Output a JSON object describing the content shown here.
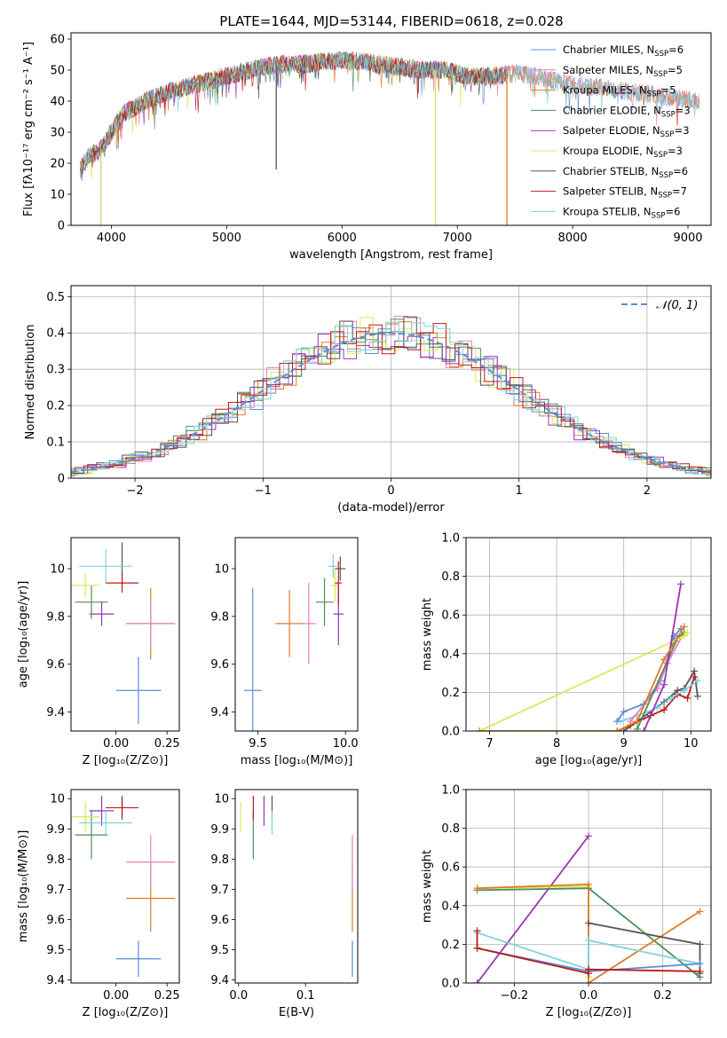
{
  "figure_title": "PLATE=1644, MJD=53144, FIBERID=0618, z=0.028",
  "legend_entries": [
    {
      "label": "Chabrier MILES, N",
      "sub": "SSP",
      "tail": "=6",
      "color": "#5b8bd8"
    },
    {
      "label": "Salpeter MILES, N",
      "sub": "SSP",
      "tail": "=5",
      "color": "#ea7fc4"
    },
    {
      "label": "Kroupa MILES, N",
      "sub": "SSP",
      "tail": "=5",
      "color": "#e07a28"
    },
    {
      "label": "Chabrier ELODIE, N",
      "sub": "SSP",
      "tail": "=3",
      "color": "#4f8c5a"
    },
    {
      "label": "Salpeter ELODIE, N",
      "sub": "SSP",
      "tail": "=3",
      "color": "#9a35b2"
    },
    {
      "label": "Kroupa ELODIE, N",
      "sub": "SSP",
      "tail": "=3",
      "color": "#d8ea55"
    },
    {
      "label": "Chabrier STELIB, N",
      "sub": "SSP",
      "tail": "=6",
      "color": "#555555"
    },
    {
      "label": "Salpeter STELIB, N",
      "sub": "SSP",
      "tail": "=7",
      "color": "#c01a1a"
    },
    {
      "label": "Kroupa STELIB, N",
      "sub": "SSP",
      "tail": "=6",
      "color": "#7fd2dc"
    }
  ],
  "chart_data": [
    {
      "id": "spectrum",
      "type": "line",
      "xlabel": "wavelength [Angstrom, rest frame]",
      "ylabel": "Flux [fλ10⁻¹⁷ erg cm⁻² s⁻¹ A⁻¹]",
      "xlim": [
        3650,
        9200
      ],
      "ylim": [
        0,
        62
      ],
      "xticks": [
        4000,
        5000,
        6000,
        7000,
        8000,
        9000
      ],
      "yticks": [
        0,
        10,
        20,
        30,
        40,
        50,
        60
      ],
      "continuum": [
        [
          3730,
          18
        ],
        [
          3800,
          22
        ],
        [
          3900,
          24
        ],
        [
          4000,
          30
        ],
        [
          4100,
          36
        ],
        [
          4300,
          40
        ],
        [
          4500,
          43
        ],
        [
          4700,
          45
        ],
        [
          4900,
          47
        ],
        [
          5100,
          49
        ],
        [
          5300,
          51
        ],
        [
          5500,
          52
        ],
        [
          5700,
          52
        ],
        [
          5900,
          53
        ],
        [
          6100,
          53
        ],
        [
          6300,
          52
        ],
        [
          6500,
          51
        ],
        [
          6700,
          50
        ],
        [
          6900,
          50
        ],
        [
          7100,
          48
        ],
        [
          7300,
          48
        ],
        [
          7500,
          49
        ],
        [
          7700,
          48
        ],
        [
          7900,
          46
        ],
        [
          8100,
          45
        ],
        [
          8300,
          44
        ],
        [
          8500,
          43
        ],
        [
          8700,
          42
        ],
        [
          8900,
          41
        ],
        [
          9100,
          40
        ]
      ],
      "drops": [
        [
          3910,
          0
        ],
        [
          5430,
          18
        ],
        [
          6810,
          0
        ],
        [
          7430,
          0
        ]
      ],
      "grid": false,
      "legend": "top-right"
    },
    {
      "id": "residual_histogram",
      "type": "line",
      "xlabel": "(data-model)/error",
      "ylabel": "Normed distribution",
      "xlim": [
        -2.5,
        2.5
      ],
      "ylim": [
        0,
        0.53
      ],
      "xticks": [
        -2,
        -1,
        0,
        1,
        2
      ],
      "yticks": [
        0,
        0.1,
        0.2,
        0.3,
        0.4,
        0.5
      ],
      "reference_curve": "N(0,1)",
      "legend_label": "𝒩(0, 1)",
      "bin_width": 0.1,
      "grid": true,
      "legend": "top-right"
    },
    {
      "id": "age_vs_Z",
      "type": "scatter",
      "xlabel": "Z [log₁₀(Z/Z⊙)]",
      "ylabel": "age  [log₁₀(age/yr)]",
      "xlim": [
        -0.22,
        0.31
      ],
      "ylim": [
        9.32,
        10.13
      ],
      "xticks": [
        0.0,
        0.25
      ],
      "xticklabels": [
        "0.00",
        "0.25"
      ],
      "yticks": [
        9.4,
        9.6,
        9.8,
        10.0
      ],
      "points": [
        {
          "color": "#5b8bd8",
          "x": 0.11,
          "xerr": 0.11,
          "y": 9.49,
          "yerr": 0.14
        },
        {
          "color": "#e07a28",
          "x": 0.17,
          "xerr": 0.12,
          "y": 9.77,
          "yerr": 0.15
        },
        {
          "color": "#ea7fc4",
          "x": 0.17,
          "xerr": 0.12,
          "y": 9.77,
          "yerr": 0.1
        },
        {
          "color": "#4f8c5a",
          "x": -0.12,
          "xerr": 0.08,
          "y": 9.86,
          "yerr": 0.07
        },
        {
          "color": "#9a35b2",
          "x": -0.07,
          "xerr": 0.06,
          "y": 9.81,
          "yerr": 0.05
        },
        {
          "color": "#d8ea55",
          "x": -0.15,
          "xerr": 0.07,
          "y": 9.93,
          "yerr": 0.05
        },
        {
          "color": "#555555",
          "x": 0.03,
          "xerr": 0.0,
          "y": 10.02,
          "yerr": 0.09
        },
        {
          "color": "#c01a1a",
          "x": 0.03,
          "xerr": 0.08,
          "y": 9.94,
          "yerr": 0.04
        },
        {
          "color": "#7fd2dc",
          "x": -0.05,
          "xerr": 0.13,
          "y": 10.01,
          "yerr": 0.07
        }
      ]
    },
    {
      "id": "age_vs_mass",
      "type": "scatter",
      "xlabel": "mass [log₁₀(M/M⊙)]",
      "ylabel": "",
      "xlim": [
        9.37,
        10.07
      ],
      "ylim": [
        9.32,
        10.13
      ],
      "xticks": [
        9.5,
        10.0
      ],
      "xticklabels": [
        "9.5",
        "10.0"
      ],
      "yticks": [
        9.4,
        9.6,
        9.8,
        10.0
      ],
      "points": [
        {
          "color": "#5b8bd8",
          "x": 9.47,
          "xerr": 0.05,
          "y": 9.49,
          "yerr": 0.43
        },
        {
          "color": "#e07a28",
          "x": 9.68,
          "xerr": 0.08,
          "y": 9.77,
          "yerr": 0.14
        },
        {
          "color": "#ea7fc4",
          "x": 9.79,
          "xerr": 0.04,
          "y": 9.77,
          "yerr": 0.17
        },
        {
          "color": "#4f8c5a",
          "x": 9.88,
          "xerr": 0.05,
          "y": 9.86,
          "yerr": 0.1
        },
        {
          "color": "#9a35b2",
          "x": 9.96,
          "xerr": 0.03,
          "y": 9.81,
          "yerr": 0.13
        },
        {
          "color": "#d8ea55",
          "x": 9.94,
          "xerr": 0.02,
          "y": 9.93,
          "yerr": 0.07
        },
        {
          "color": "#555555",
          "x": 9.97,
          "xerr": 0.03,
          "y": 10.0,
          "yerr": 0.05
        },
        {
          "color": "#c01a1a",
          "x": 9.96,
          "xerr": 0.02,
          "y": 9.94,
          "yerr": 0.09
        },
        {
          "color": "#7fd2dc",
          "x": 9.93,
          "xerr": 0.03,
          "y": 10.01,
          "yerr": 0.05
        }
      ]
    },
    {
      "id": "weight_vs_age",
      "type": "line",
      "xlabel": "age  [log₁₀(age/yr)]",
      "ylabel": "mass weight",
      "xlim": [
        6.65,
        10.3
      ],
      "ylim": [
        0,
        1.0
      ],
      "xticks": [
        7,
        8,
        9,
        10
      ],
      "yticks": [
        0,
        0.2,
        0.4,
        0.6,
        0.8,
        1.0
      ],
      "yticklabels": [
        "0.0",
        "0.2",
        "0.4",
        "0.6",
        "0.8",
        "1.0"
      ],
      "grid": true,
      "series": [
        {
          "color": "#555555",
          "points": [
            [
              9.0,
              0.0
            ],
            [
              9.2,
              0.05
            ],
            [
              9.6,
              0.15
            ],
            [
              9.8,
              0.21
            ],
            [
              9.9,
              0.22
            ],
            [
              10.05,
              0.31
            ],
            [
              10.1,
              0.18
            ]
          ]
        },
        {
          "color": "#c01a1a",
          "points": [
            [
              8.9,
              0.0
            ],
            [
              9.1,
              0.03
            ],
            [
              9.4,
              0.08
            ],
            [
              9.6,
              0.11
            ],
            [
              9.8,
              0.19
            ],
            [
              9.95,
              0.17
            ],
            [
              10.05,
              0.28
            ]
          ]
        },
        {
          "color": "#7fd2dc",
          "points": [
            [
              8.95,
              0.05
            ],
            [
              9.2,
              0.08
            ],
            [
              9.5,
              0.12
            ],
            [
              9.7,
              0.17
            ],
            [
              9.9,
              0.21
            ],
            [
              10.1,
              0.26
            ]
          ]
        },
        {
          "color": "#5b8bd8",
          "points": [
            [
              8.9,
              0.05
            ],
            [
              9.0,
              0.1
            ],
            [
              9.3,
              0.14
            ],
            [
              9.55,
              0.26
            ],
            [
              9.75,
              0.49
            ],
            [
              9.85,
              0.53
            ]
          ]
        },
        {
          "color": "#ea7fc4",
          "points": [
            [
              9.1,
              0.05
            ],
            [
              9.5,
              0.22
            ],
            [
              9.65,
              0.35
            ],
            [
              9.9,
              0.51
            ]
          ]
        },
        {
          "color": "#4f8c5a",
          "points": [
            [
              9.2,
              0.01
            ],
            [
              9.8,
              0.48
            ],
            [
              9.9,
              0.51
            ]
          ]
        },
        {
          "color": "#d8ea55",
          "points": [
            [
              6.85,
              0.0
            ],
            [
              9.9,
              0.49
            ],
            [
              9.95,
              0.51
            ]
          ]
        },
        {
          "color": "#9a35b2",
          "points": [
            [
              9.3,
              0.0
            ],
            [
              9.6,
              0.24
            ],
            [
              9.85,
              0.76
            ]
          ]
        },
        {
          "color": "#e07a28",
          "points": [
            [
              6.85,
              0.0
            ],
            [
              8.9,
              0.0
            ],
            [
              9.2,
              0.05
            ],
            [
              9.6,
              0.37
            ],
            [
              9.9,
              0.54
            ]
          ]
        }
      ]
    },
    {
      "id": "mass_vs_Z",
      "type": "scatter",
      "xlabel": "Z [log₁₀(Z/Z⊙)]",
      "ylabel": "mass [log₁₀(M/M⊙)]",
      "xlim": [
        -0.22,
        0.31
      ],
      "ylim": [
        9.39,
        10.03
      ],
      "xticks": [
        0.0,
        0.25
      ],
      "xticklabels": [
        "0.00",
        "0.25"
      ],
      "yticks": [
        9.4,
        9.5,
        9.6,
        9.7,
        9.8,
        9.9,
        10.0
      ],
      "points": [
        {
          "color": "#5b8bd8",
          "x": 0.11,
          "xerr": 0.11,
          "y": 9.47,
          "yerr": 0.06
        },
        {
          "color": "#e07a28",
          "x": 0.17,
          "xerr": 0.12,
          "y": 9.67,
          "yerr": 0.11
        },
        {
          "color": "#ea7fc4",
          "x": 0.17,
          "xerr": 0.12,
          "y": 9.79,
          "yerr": 0.09
        },
        {
          "color": "#4f8c5a",
          "x": -0.12,
          "xerr": 0.08,
          "y": 9.88,
          "yerr": 0.08
        },
        {
          "color": "#9a35b2",
          "x": -0.07,
          "xerr": 0.06,
          "y": 9.96,
          "yerr": 0.05
        },
        {
          "color": "#d8ea55",
          "x": -0.15,
          "xerr": 0.07,
          "y": 9.94,
          "yerr": 0.05
        },
        {
          "color": "#555555",
          "x": 0.03,
          "xerr": 0.0,
          "y": 9.97,
          "yerr": 0.04
        },
        {
          "color": "#c01a1a",
          "x": 0.03,
          "xerr": 0.08,
          "y": 9.97,
          "yerr": 0.03
        },
        {
          "color": "#7fd2dc",
          "x": -0.05,
          "xerr": 0.13,
          "y": 9.92,
          "yerr": 0.04
        }
      ]
    },
    {
      "id": "mass_vs_EBV",
      "type": "scatter",
      "xlabel": "E(B-V)",
      "ylabel": "",
      "xlim": [
        -0.005,
        0.178
      ],
      "ylim": [
        9.39,
        10.03
      ],
      "xticks": [
        0.0,
        0.1
      ],
      "xticklabels": [
        "0.0",
        "0.1"
      ],
      "yticks": [
        9.4,
        9.5,
        9.6,
        9.7,
        9.8,
        9.9,
        10.0
      ],
      "points": [
        {
          "color": "#5b8bd8",
          "x": 0.17,
          "xerr": 0.0,
          "y": 9.47,
          "yerr": 0.06
        },
        {
          "color": "#e07a28",
          "x": 0.17,
          "xerr": 0.0,
          "y": 9.67,
          "yerr": 0.11
        },
        {
          "color": "#ea7fc4",
          "x": 0.17,
          "xerr": 0.0,
          "y": 9.79,
          "yerr": 0.09
        },
        {
          "color": "#4f8c5a",
          "x": 0.022,
          "xerr": 0.0,
          "y": 9.88,
          "yerr": 0.08
        },
        {
          "color": "#9a35b2",
          "x": 0.038,
          "xerr": 0.0,
          "y": 9.96,
          "yerr": 0.05
        },
        {
          "color": "#d8ea55",
          "x": 0.003,
          "xerr": 0.0,
          "y": 9.94,
          "yerr": 0.05
        },
        {
          "color": "#555555",
          "x": 0.05,
          "xerr": 0.0,
          "y": 9.97,
          "yerr": 0.04
        },
        {
          "color": "#c01a1a",
          "x": 0.022,
          "xerr": 0.0,
          "y": 9.97,
          "yerr": 0.04
        },
        {
          "color": "#7fd2dc",
          "x": 0.05,
          "xerr": 0.0,
          "y": 9.92,
          "yerr": 0.04
        }
      ]
    },
    {
      "id": "weight_vs_Z",
      "type": "line",
      "xlabel": "Z [log₁₀(Z/Z⊙)]",
      "ylabel": "mass weight",
      "xlim": [
        -0.33,
        0.33
      ],
      "ylim": [
        0,
        1.0
      ],
      "xticks": [
        -0.2,
        0.0,
        0.2
      ],
      "xticklabels": [
        "−0.2",
        "0.0",
        "0.2"
      ],
      "yticks": [
        0,
        0.2,
        0.4,
        0.6,
        0.8,
        1.0
      ],
      "yticklabels": [
        "0.0",
        "0.2",
        "0.4",
        "0.6",
        "0.8",
        "1.0"
      ],
      "grid": true,
      "series": [
        {
          "color": "#9a35b2",
          "points": [
            [
              -0.3,
              0.0
            ],
            [
              0.0,
              0.76
            ]
          ]
        },
        {
          "color": "#d8ea55",
          "points": [
            [
              -0.3,
              0.49
            ],
            [
              0.0,
              0.5
            ],
            [
              0.0,
              0.03
            ]
          ]
        },
        {
          "color": "#4f8c5a",
          "points": [
            [
              -0.3,
              0.48
            ],
            [
              0.0,
              0.49
            ],
            [
              0.3,
              0.03
            ]
          ]
        },
        {
          "color": "#e07a28",
          "points": [
            [
              -0.3,
              0.49
            ],
            [
              0.0,
              0.51
            ],
            [
              0.0,
              0.0
            ],
            [
              0.3,
              0.37
            ]
          ]
        },
        {
          "color": "#555555",
          "points": [
            [
              0.0,
              0.31
            ],
            [
              0.3,
              0.2
            ],
            [
              0.3,
              0.05
            ]
          ]
        },
        {
          "color": "#7fd2dc",
          "points": [
            [
              -0.3,
              0.26
            ],
            [
              0.0,
              0.07
            ],
            [
              0.0,
              0.22
            ],
            [
              0.3,
              0.1
            ]
          ]
        },
        {
          "color": "#5b8bd8",
          "points": [
            [
              -0.3,
              0.18
            ],
            [
              0.0,
              0.06
            ],
            [
              0.3,
              0.1
            ]
          ]
        },
        {
          "color": "#c01a1a",
          "points": [
            [
              -0.3,
              0.27
            ],
            [
              -0.3,
              0.18
            ],
            [
              0.0,
              0.05
            ],
            [
              0.0,
              0.07
            ],
            [
              0.3,
              0.06
            ]
          ]
        }
      ]
    }
  ]
}
